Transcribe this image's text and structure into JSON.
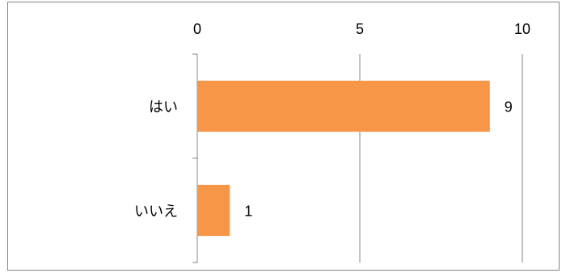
{
  "chart_data": {
    "type": "bar",
    "orientation": "horizontal",
    "categories": [
      "はい",
      "いいえ"
    ],
    "values": [
      9,
      1
    ],
    "data_labels": [
      "9",
      "1"
    ],
    "x_ticks": [
      "0",
      "5",
      "10"
    ],
    "xlim": [
      0,
      10
    ],
    "x_axis_position": "top",
    "grid": true,
    "legend": "none",
    "bar_color": "#F79646",
    "grid_color": "#868686"
  }
}
